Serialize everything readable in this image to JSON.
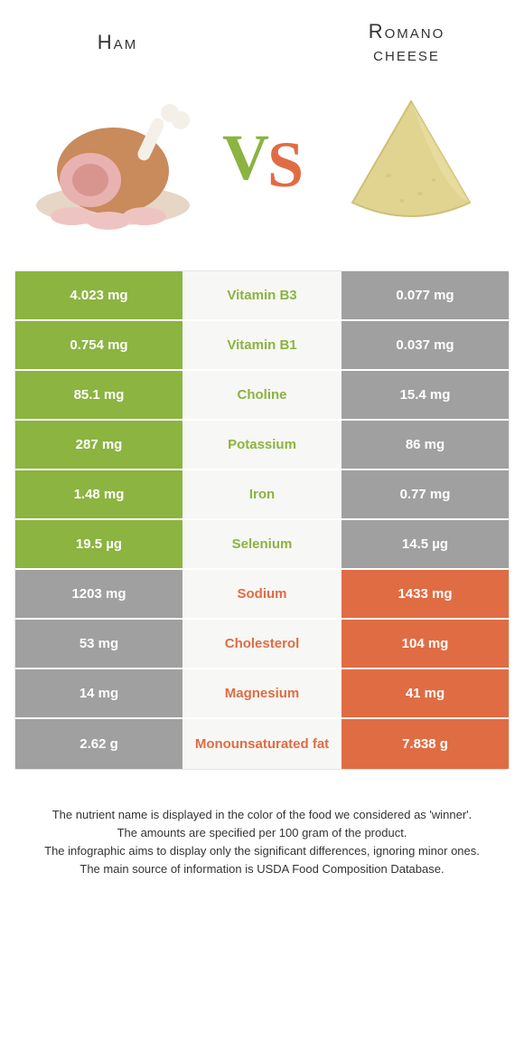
{
  "colors": {
    "left": "#8bb440",
    "right": "#e06c44",
    "gray": "#a0a0a0",
    "mid_bg": "#f7f7f5"
  },
  "header": {
    "left_title": "Ham",
    "right_title_line1": "Romano",
    "right_title_line2": "cheese",
    "vs_v": "V",
    "vs_s": "S"
  },
  "rows": [
    {
      "left_val": "4.023 mg",
      "name": "Vitamin B3",
      "right_val": "0.077 mg",
      "winner": "left"
    },
    {
      "left_val": "0.754 mg",
      "name": "Vitamin B1",
      "right_val": "0.037 mg",
      "winner": "left"
    },
    {
      "left_val": "85.1 mg",
      "name": "Choline",
      "right_val": "15.4 mg",
      "winner": "left"
    },
    {
      "left_val": "287 mg",
      "name": "Potassium",
      "right_val": "86 mg",
      "winner": "left"
    },
    {
      "left_val": "1.48 mg",
      "name": "Iron",
      "right_val": "0.77 mg",
      "winner": "left"
    },
    {
      "left_val": "19.5 µg",
      "name": "Selenium",
      "right_val": "14.5 µg",
      "winner": "left"
    },
    {
      "left_val": "1203 mg",
      "name": "Sodium",
      "right_val": "1433 mg",
      "winner": "right"
    },
    {
      "left_val": "53 mg",
      "name": "Cholesterol",
      "right_val": "104 mg",
      "winner": "right"
    },
    {
      "left_val": "14 mg",
      "name": "Magnesium",
      "right_val": "41 mg",
      "winner": "right"
    },
    {
      "left_val": "2.62 g",
      "name": "Monounsaturated fat",
      "right_val": "7.838 g",
      "winner": "right"
    }
  ],
  "footer": {
    "line1": "The nutrient name is displayed in the color of the food we considered as 'winner'.",
    "line2": "The amounts are specified per 100 gram of the product.",
    "line3": "The infographic aims to display only the significant differences, ignoring minor ones.",
    "line4": "The main source of information is USDA Food Composition Database."
  }
}
